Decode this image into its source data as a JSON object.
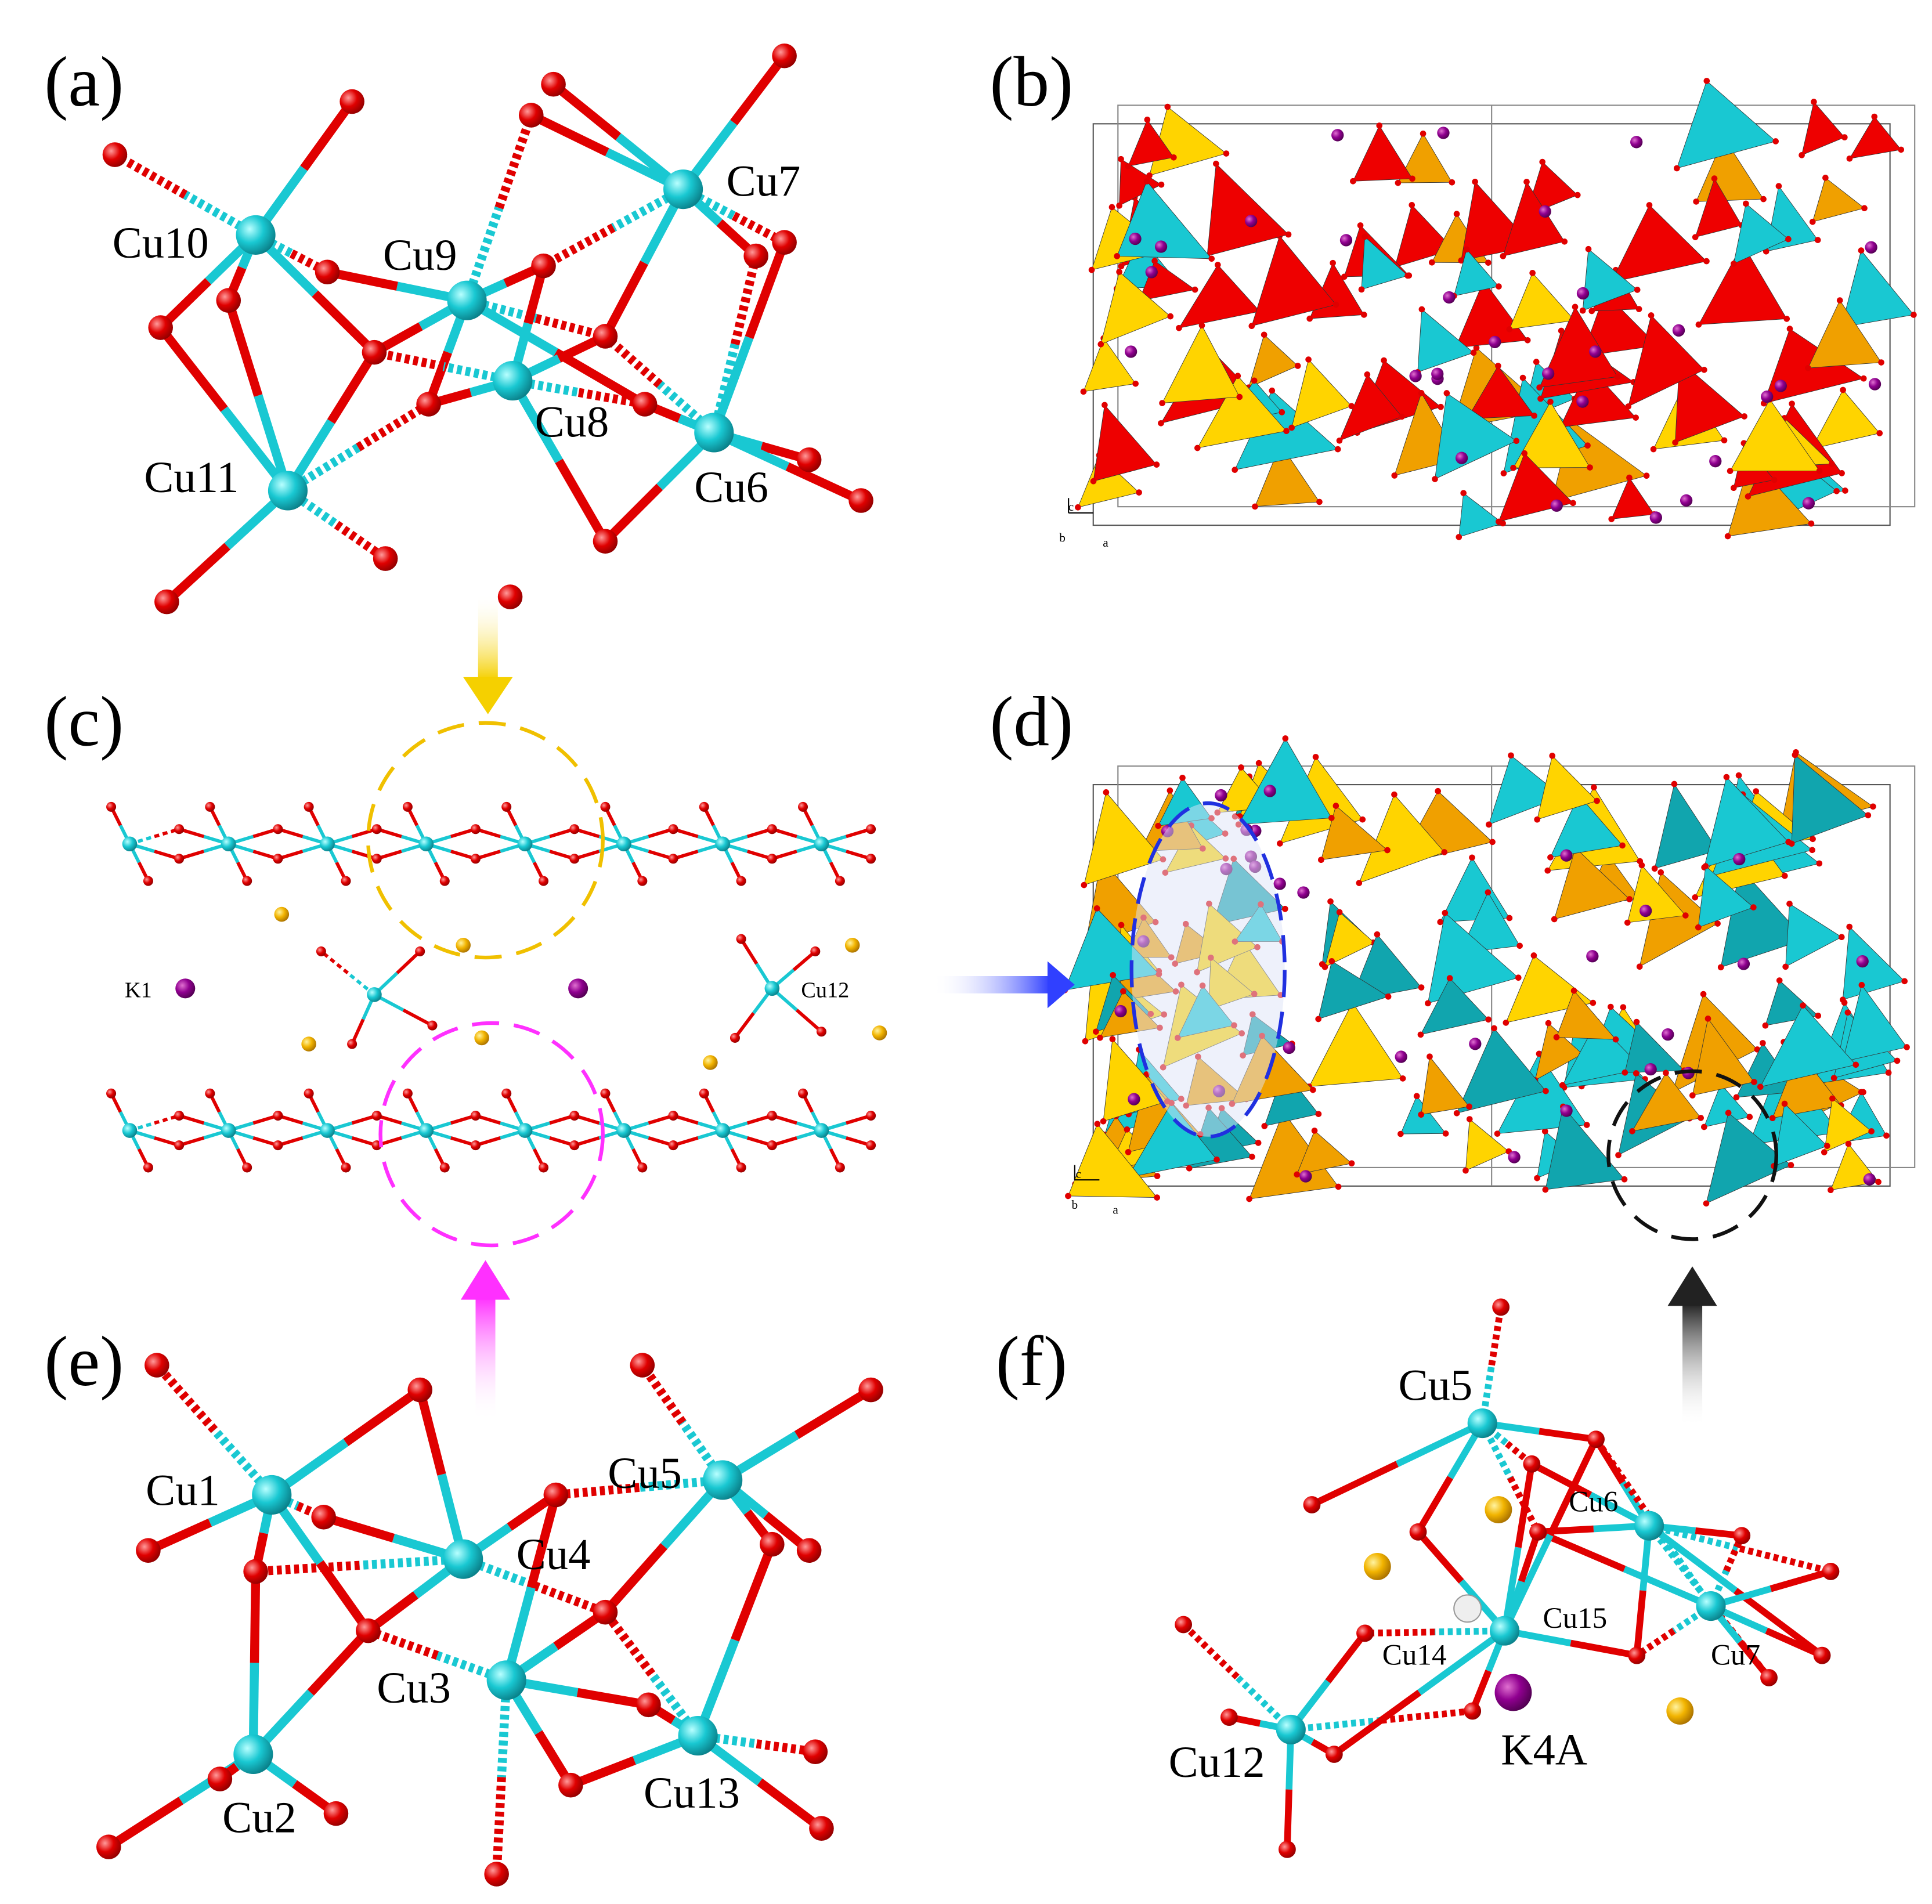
{
  "panels": [
    {
      "label": "(a)",
      "atoms": [
        "Cu10",
        "Cu9",
        "Cu7",
        "Cu8",
        "Cu11",
        "Cu6"
      ]
    },
    {
      "label": "(b)",
      "axes": [
        "c",
        "b",
        "a"
      ]
    },
    {
      "label": "(c)",
      "atoms": [
        "K1",
        "Cu12"
      ]
    },
    {
      "label": "(d)",
      "axes": [
        "c",
        "b",
        "a"
      ]
    },
    {
      "label": "(e)",
      "atoms": [
        "Cu1",
        "Cu4",
        "Cu5",
        "Cu3",
        "Cu2",
        "Cu13"
      ]
    },
    {
      "label": "(f)",
      "atoms": [
        "Cu5",
        "Cu6",
        "Cu15",
        "Cu14",
        "Cu7",
        "K4A",
        "Cu12"
      ]
    }
  ]
}
